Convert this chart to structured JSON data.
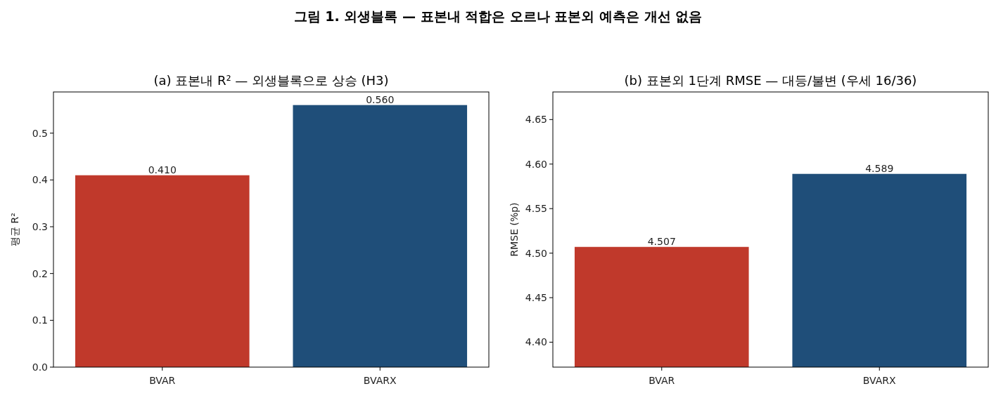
{
  "chart_data": [
    {
      "type": "bar",
      "title": "(a) 표본내 R² — 외생블록으로 상승 (H3)",
      "ylabel": "평균 R²",
      "annotations": [
        "그림 1. 외생블록 — 표본내 적합은 오르나 표본외 예측은 개선 없음"
      ],
      "categories": [
        "BVAR",
        "BVARX"
      ],
      "values": [
        0.41,
        0.56
      ],
      "colors": [
        "#c0392b",
        "#1f4e79"
      ],
      "value_labels": [
        "0.410",
        "0.560"
      ],
      "ylim": [
        0,
        0.588
      ],
      "yticks": [
        {
          "value": 0,
          "label": "0.0"
        },
        {
          "value": 0.1,
          "label": "0.1"
        },
        {
          "value": 0.2,
          "label": "0.2"
        },
        {
          "value": 0.3,
          "label": "0.3"
        },
        {
          "value": 0.4,
          "label": "0.4"
        },
        {
          "value": 0.5,
          "label": "0.5"
        }
      ]
    },
    {
      "type": "bar",
      "title": "(b) 표본외 1단계 RMSE — 대등/불변 (우세 16/36)",
      "ylabel": "RMSE (%p)",
      "categories": [
        "BVAR",
        "BVARX"
      ],
      "values": [
        4.507,
        4.589
      ],
      "colors": [
        "#c0392b",
        "#1f4e79"
      ],
      "value_labels": [
        "4.507",
        "4.589"
      ],
      "ylim": [
        4.372,
        4.681
      ],
      "yticks": [
        {
          "value": 4.4,
          "label": "4.40"
        },
        {
          "value": 4.45,
          "label": "4.45"
        },
        {
          "value": 4.5,
          "label": "4.50"
        },
        {
          "value": 4.55,
          "label": "4.55"
        },
        {
          "value": 4.6,
          "label": "4.60"
        },
        {
          "value": 4.65,
          "label": "4.65"
        }
      ]
    }
  ]
}
